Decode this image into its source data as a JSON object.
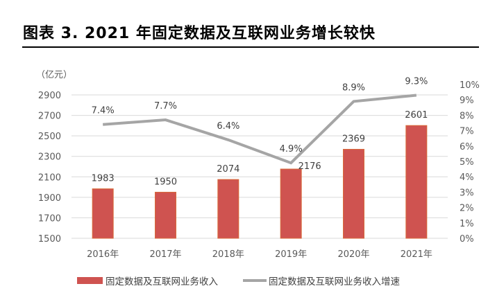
{
  "header": {
    "title": "图表 3. 2021 年固定数据及互联网业务增长较快"
  },
  "chart_data": {
    "type": "bar+line",
    "title": "2021 年固定数据及互联网业务增长较快",
    "categories": [
      "2016年",
      "2017年",
      "2018年",
      "2019年",
      "2020年",
      "2021年"
    ],
    "series": [
      {
        "name": "固定数据及互联网业务收入",
        "type": "bar",
        "axis": "left",
        "color": "#CF5350",
        "values": [
          1983,
          1950,
          2074,
          2176,
          2369,
          2601
        ],
        "labels": [
          "1983",
          "1950",
          "2074",
          "2176",
          "2369",
          "2601"
        ]
      },
      {
        "name": "固定数据及互联网业务收入增速",
        "type": "line",
        "axis": "right",
        "color": "#A5A5A5",
        "values": [
          7.4,
          7.7,
          6.4,
          4.9,
          8.9,
          9.3
        ],
        "labels": [
          "7.4%",
          "7.7%",
          "6.4%",
          "4.9%",
          "8.9%",
          "9.3%"
        ]
      }
    ],
    "left_axis": {
      "unit_label": "（亿元）",
      "ylim": [
        1500,
        2900
      ],
      "ticks": [
        "1500",
        "1700",
        "1900",
        "2100",
        "2300",
        "2500",
        "2700",
        "2900"
      ]
    },
    "right_axis": {
      "ylim": [
        0,
        10
      ],
      "ticks": [
        "0%",
        "1%",
        "2%",
        "3%",
        "4%",
        "5%",
        "6%",
        "7%",
        "8%",
        "9%",
        "10%"
      ]
    },
    "grid": true,
    "legend_position": "bottom"
  },
  "legend": {
    "bar_label": "固定数据及互联网业务收入",
    "line_label": "固定数据及互联网业务收入增速"
  }
}
